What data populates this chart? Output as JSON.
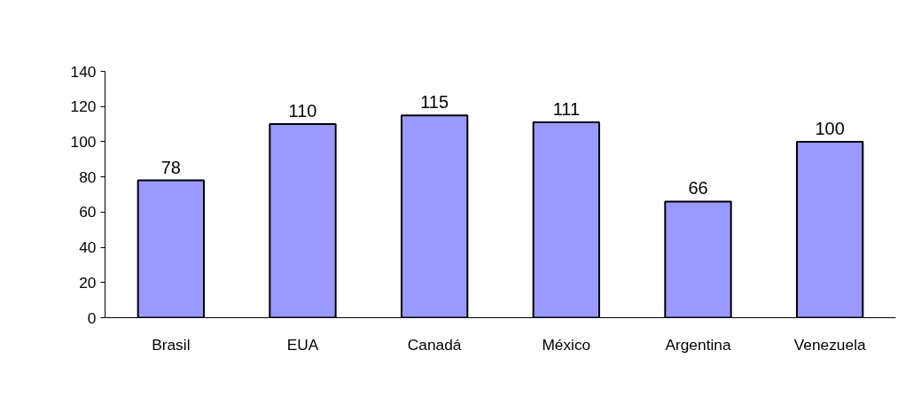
{
  "chart_data": {
    "type": "bar",
    "categories": [
      "Brasil",
      "EUA",
      "Canadá",
      "México",
      "Argentina",
      "Venezuela"
    ],
    "values": [
      78,
      110,
      115,
      111,
      66,
      100
    ],
    "color": "#9999ff",
    "ylim": [
      0,
      140
    ],
    "yticks": [
      0,
      20,
      40,
      60,
      80,
      100,
      120,
      140
    ],
    "grid": false,
    "data_labels": true
  }
}
